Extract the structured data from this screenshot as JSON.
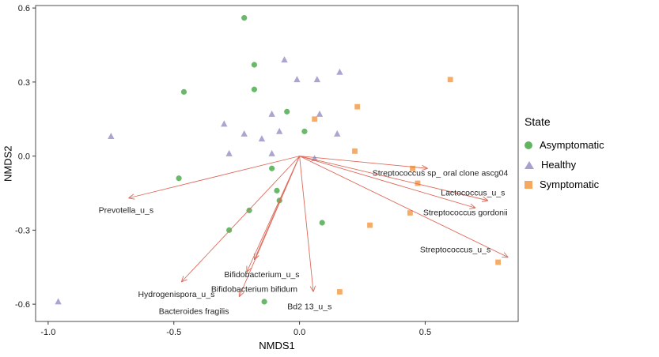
{
  "axes": {
    "x_label": "NMDS1",
    "y_label": "NMDS2",
    "xlim": [
      -1.05,
      0.87
    ],
    "ylim": [
      -0.67,
      0.61
    ],
    "x_ticks": [
      {
        "v": -1.0,
        "label": "-1.0"
      },
      {
        "v": -0.5,
        "label": "-0.5"
      },
      {
        "v": 0.0,
        "label": "0.0"
      },
      {
        "v": 0.5,
        "label": "0.5"
      }
    ],
    "y_ticks": [
      {
        "v": -0.6,
        "label": "-0.6"
      },
      {
        "v": -0.3,
        "label": "-0.3"
      },
      {
        "v": 0.0,
        "label": "0.0"
      },
      {
        "v": 0.3,
        "label": "0.3"
      },
      {
        "v": 0.6,
        "label": "0.6"
      }
    ]
  },
  "legend": {
    "title": "State",
    "items": [
      {
        "label": "Asymptomatic",
        "shape": "circle",
        "color": "#62b462"
      },
      {
        "label": "Healthy",
        "shape": "triangle",
        "color": "#a6a1cf"
      },
      {
        "label": "Symptomatic",
        "shape": "square",
        "color": "#f4a860"
      }
    ]
  },
  "chart_data": {
    "type": "scatter",
    "title": "",
    "xlabel": "NMDS1",
    "ylabel": "NMDS2",
    "xlim": [
      -1.05,
      0.87
    ],
    "ylim": [
      -0.67,
      0.61
    ],
    "grid": false,
    "legend_position": "right",
    "vector_color": "#dd6a5a",
    "series": [
      {
        "name": "Asymptomatic",
        "shape": "circle",
        "color": "#62b462",
        "points": [
          [
            -0.22,
            0.56
          ],
          [
            -0.46,
            0.26
          ],
          [
            -0.18,
            0.37
          ],
          [
            -0.18,
            0.27
          ],
          [
            -0.05,
            0.18
          ],
          [
            0.02,
            0.1
          ],
          [
            -0.48,
            -0.09
          ],
          [
            -0.11,
            -0.05
          ],
          [
            -0.09,
            -0.14
          ],
          [
            -0.08,
            -0.18
          ],
          [
            -0.2,
            -0.22
          ],
          [
            -0.28,
            -0.3
          ],
          [
            0.09,
            -0.27
          ],
          [
            -0.14,
            -0.59
          ]
        ]
      },
      {
        "name": "Healthy",
        "shape": "triangle",
        "color": "#a6a1cf",
        "points": [
          [
            -0.96,
            -0.59
          ],
          [
            -0.75,
            0.08
          ],
          [
            -0.3,
            0.13
          ],
          [
            -0.22,
            0.09
          ],
          [
            -0.15,
            0.07
          ],
          [
            -0.11,
            0.17
          ],
          [
            -0.06,
            0.39
          ],
          [
            -0.01,
            0.31
          ],
          [
            0.07,
            0.31
          ],
          [
            0.16,
            0.34
          ],
          [
            0.08,
            0.17
          ],
          [
            -0.08,
            0.1
          ],
          [
            -0.28,
            0.01
          ],
          [
            -0.11,
            0.01
          ],
          [
            0.06,
            -0.01
          ],
          [
            0.15,
            0.09
          ]
        ]
      },
      {
        "name": "Symptomatic",
        "shape": "square",
        "color": "#f4a860",
        "points": [
          [
            0.6,
            0.31
          ],
          [
            0.23,
            0.2
          ],
          [
            0.06,
            0.15
          ],
          [
            0.22,
            0.02
          ],
          [
            0.45,
            -0.05
          ],
          [
            0.47,
            -0.11
          ],
          [
            0.44,
            -0.23
          ],
          [
            0.28,
            -0.28
          ],
          [
            0.79,
            -0.43
          ],
          [
            0.16,
            -0.55
          ]
        ]
      }
    ],
    "vectors": [
      {
        "name": "Prevotella_u_s",
        "tip": [
          -0.68,
          -0.17
        ],
        "label_pos": [
          -0.69,
          -0.23
        ]
      },
      {
        "name": "Hydrogenispora_u_s",
        "tip": [
          -0.47,
          -0.51
        ],
        "label_pos": [
          -0.49,
          -0.57
        ]
      },
      {
        "name": "Bacteroides fragilis",
        "tip": [
          -0.24,
          -0.57
        ],
        "label_pos": [
          -0.42,
          -0.64
        ]
      },
      {
        "name": "Bifidobacterium bifidum",
        "tip": [
          -0.21,
          -0.47
        ],
        "label_pos": [
          -0.18,
          -0.55
        ]
      },
      {
        "name": "Bifidobacterium_u_s",
        "tip": [
          -0.18,
          -0.42
        ],
        "label_pos": [
          -0.15,
          -0.49
        ]
      },
      {
        "name": "Bd2 13_u_s",
        "tip": [
          0.055,
          -0.55
        ],
        "label_pos": [
          0.04,
          -0.62
        ]
      },
      {
        "name": "Streptococcus sp_ oral clone ascg04",
        "tip": [
          0.51,
          -0.05
        ],
        "label_pos": [
          0.56,
          -0.08
        ]
      },
      {
        "name": "Lactococcus_u_s",
        "tip": [
          0.75,
          -0.18
        ],
        "label_pos": [
          0.69,
          -0.16
        ]
      },
      {
        "name": "Streptococcus gordonii",
        "tip": [
          0.7,
          -0.21
        ],
        "label_pos": [
          0.66,
          -0.24
        ]
      },
      {
        "name": "Streptococcus_u_s",
        "tip": [
          0.83,
          -0.41
        ],
        "label_pos": [
          0.62,
          -0.39
        ]
      }
    ]
  }
}
